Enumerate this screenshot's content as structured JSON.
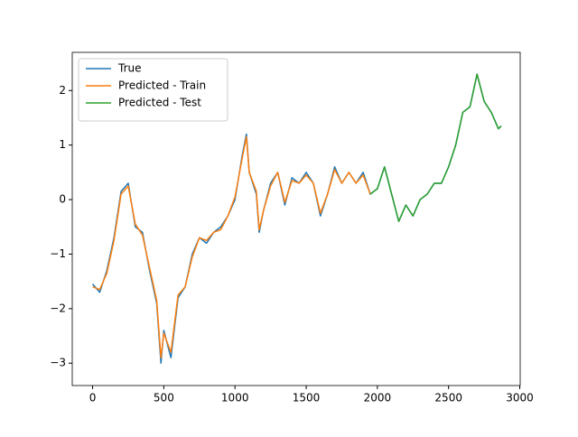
{
  "chart_data": {
    "type": "line",
    "x": [
      0,
      50,
      100,
      150,
      200,
      250,
      300,
      350,
      400,
      450,
      480,
      500,
      550,
      600,
      650,
      700,
      750,
      800,
      850,
      900,
      950,
      1000,
      1050,
      1080,
      1100,
      1150,
      1170,
      1200,
      1250,
      1300,
      1350,
      1400,
      1450,
      1500,
      1550,
      1600,
      1650,
      1700,
      1750,
      1800,
      1850,
      1900,
      1950,
      2000,
      2050,
      2100,
      2150,
      2200,
      2250,
      2300,
      2350,
      2400,
      2450,
      2500,
      2550,
      2600,
      2650,
      2700,
      2750,
      2800,
      2850,
      2870
    ],
    "series": [
      {
        "name": "True",
        "color": "#1f77b4",
        "values": [
          -1.55,
          -1.7,
          -1.3,
          -0.7,
          0.15,
          0.3,
          -0.5,
          -0.6,
          -1.3,
          -1.9,
          -3.0,
          -2.4,
          -2.9,
          -1.8,
          -1.6,
          -1.0,
          -0.7,
          -0.8,
          -0.6,
          -0.5,
          -0.3,
          0.0,
          0.8,
          1.2,
          0.5,
          0.1,
          -0.6,
          -0.2,
          0.3,
          0.5,
          -0.1,
          0.4,
          0.3,
          0.5,
          0.3,
          -0.3,
          0.1,
          0.6,
          0.3,
          0.5,
          0.3,
          0.5,
          0.1,
          0.2,
          0.6,
          0.1,
          -0.4,
          -0.1,
          -0.3,
          0.0,
          0.1,
          0.3,
          0.3,
          0.6,
          1.0,
          1.6,
          1.7,
          2.3,
          1.8,
          1.6,
          1.3,
          1.35
        ]
      },
      {
        "name": "Predicted - Train",
        "color": "#ff7f0e",
        "values": [
          -1.6,
          -1.65,
          -1.35,
          -0.75,
          0.1,
          0.25,
          -0.45,
          -0.65,
          -1.25,
          -1.85,
          -2.9,
          -2.45,
          -2.8,
          -1.75,
          -1.6,
          -1.05,
          -0.7,
          -0.75,
          -0.6,
          -0.55,
          -0.3,
          0.05,
          0.75,
          1.15,
          0.5,
          0.15,
          -0.55,
          -0.2,
          0.25,
          0.5,
          -0.05,
          0.35,
          0.3,
          0.45,
          0.3,
          -0.25,
          0.1,
          0.55,
          0.3,
          0.5,
          0.3,
          0.45,
          0.1,
          null,
          null,
          null,
          null,
          null,
          null,
          null,
          null,
          null,
          null,
          null,
          null,
          null,
          null,
          null,
          null,
          null,
          null,
          null
        ]
      },
      {
        "name": "Predicted - Test",
        "color": "#2ca02c",
        "values": [
          null,
          null,
          null,
          null,
          null,
          null,
          null,
          null,
          null,
          null,
          null,
          null,
          null,
          null,
          null,
          null,
          null,
          null,
          null,
          null,
          null,
          null,
          null,
          null,
          null,
          null,
          null,
          null,
          null,
          null,
          null,
          null,
          null,
          null,
          null,
          null,
          null,
          null,
          null,
          null,
          null,
          null,
          0.1,
          0.2,
          0.6,
          0.1,
          -0.4,
          -0.1,
          -0.3,
          0.0,
          0.1,
          0.3,
          0.3,
          0.6,
          1.0,
          1.6,
          1.7,
          2.3,
          1.8,
          1.6,
          1.3,
          1.35
        ]
      }
    ],
    "xlim": [
      -143,
      3003
    ],
    "ylim": [
      -3.41,
      2.7
    ],
    "xticks": [
      0,
      500,
      1000,
      1500,
      2000,
      2500,
      3000
    ],
    "yticks": [
      {
        "value": -3,
        "label": "−3"
      },
      {
        "value": -2,
        "label": "−2"
      },
      {
        "value": -1,
        "label": "−1"
      },
      0,
      1,
      2
    ],
    "legend": "upper left"
  }
}
